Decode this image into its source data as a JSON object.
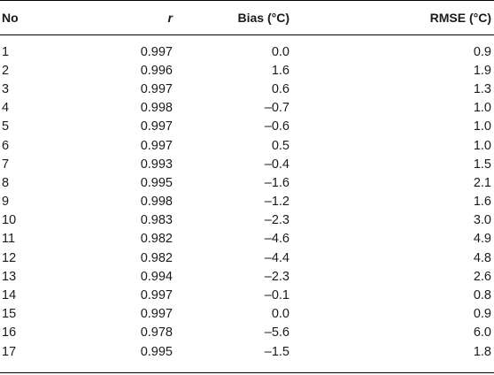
{
  "table": {
    "headers": {
      "no": "No",
      "r": "r",
      "bias": "Bias (°C)",
      "rmse": "RMSE (°C)"
    },
    "rows": [
      {
        "no": "1",
        "r": "0.997",
        "bias": "0.0",
        "rmse": "0.9"
      },
      {
        "no": "2",
        "r": "0.996",
        "bias": "1.6",
        "rmse": "1.9"
      },
      {
        "no": "3",
        "r": "0.997",
        "bias": "0.6",
        "rmse": "1.3"
      },
      {
        "no": "4",
        "r": "0.998",
        "bias": "–0.7",
        "rmse": "1.0"
      },
      {
        "no": "5",
        "r": "0.997",
        "bias": "–0.6",
        "rmse": "1.0"
      },
      {
        "no": "6",
        "r": "0.997",
        "bias": "0.5",
        "rmse": "1.0"
      },
      {
        "no": "7",
        "r": "0.993",
        "bias": "–0.4",
        "rmse": "1.5"
      },
      {
        "no": "8",
        "r": "0.995",
        "bias": "–1.6",
        "rmse": "2.1"
      },
      {
        "no": "9",
        "r": "0.998",
        "bias": "–1.2",
        "rmse": "1.6"
      },
      {
        "no": "10",
        "r": "0.983",
        "bias": "–2.3",
        "rmse": "3.0"
      },
      {
        "no": "11",
        "r": "0.982",
        "bias": "–4.6",
        "rmse": "4.9"
      },
      {
        "no": "12",
        "r": "0.982",
        "bias": "–4.4",
        "rmse": "4.8"
      },
      {
        "no": "13",
        "r": "0.994",
        "bias": "–2.3",
        "rmse": "2.6"
      },
      {
        "no": "14",
        "r": "0.997",
        "bias": "–0.1",
        "rmse": "0.8"
      },
      {
        "no": "15",
        "r": "0.997",
        "bias": "0.0",
        "rmse": "0.9"
      },
      {
        "no": "16",
        "r": "0.978",
        "bias": "–5.6",
        "rmse": "6.0"
      },
      {
        "no": "17",
        "r": "0.995",
        "bias": "–1.5",
        "rmse": "1.8"
      }
    ]
  }
}
